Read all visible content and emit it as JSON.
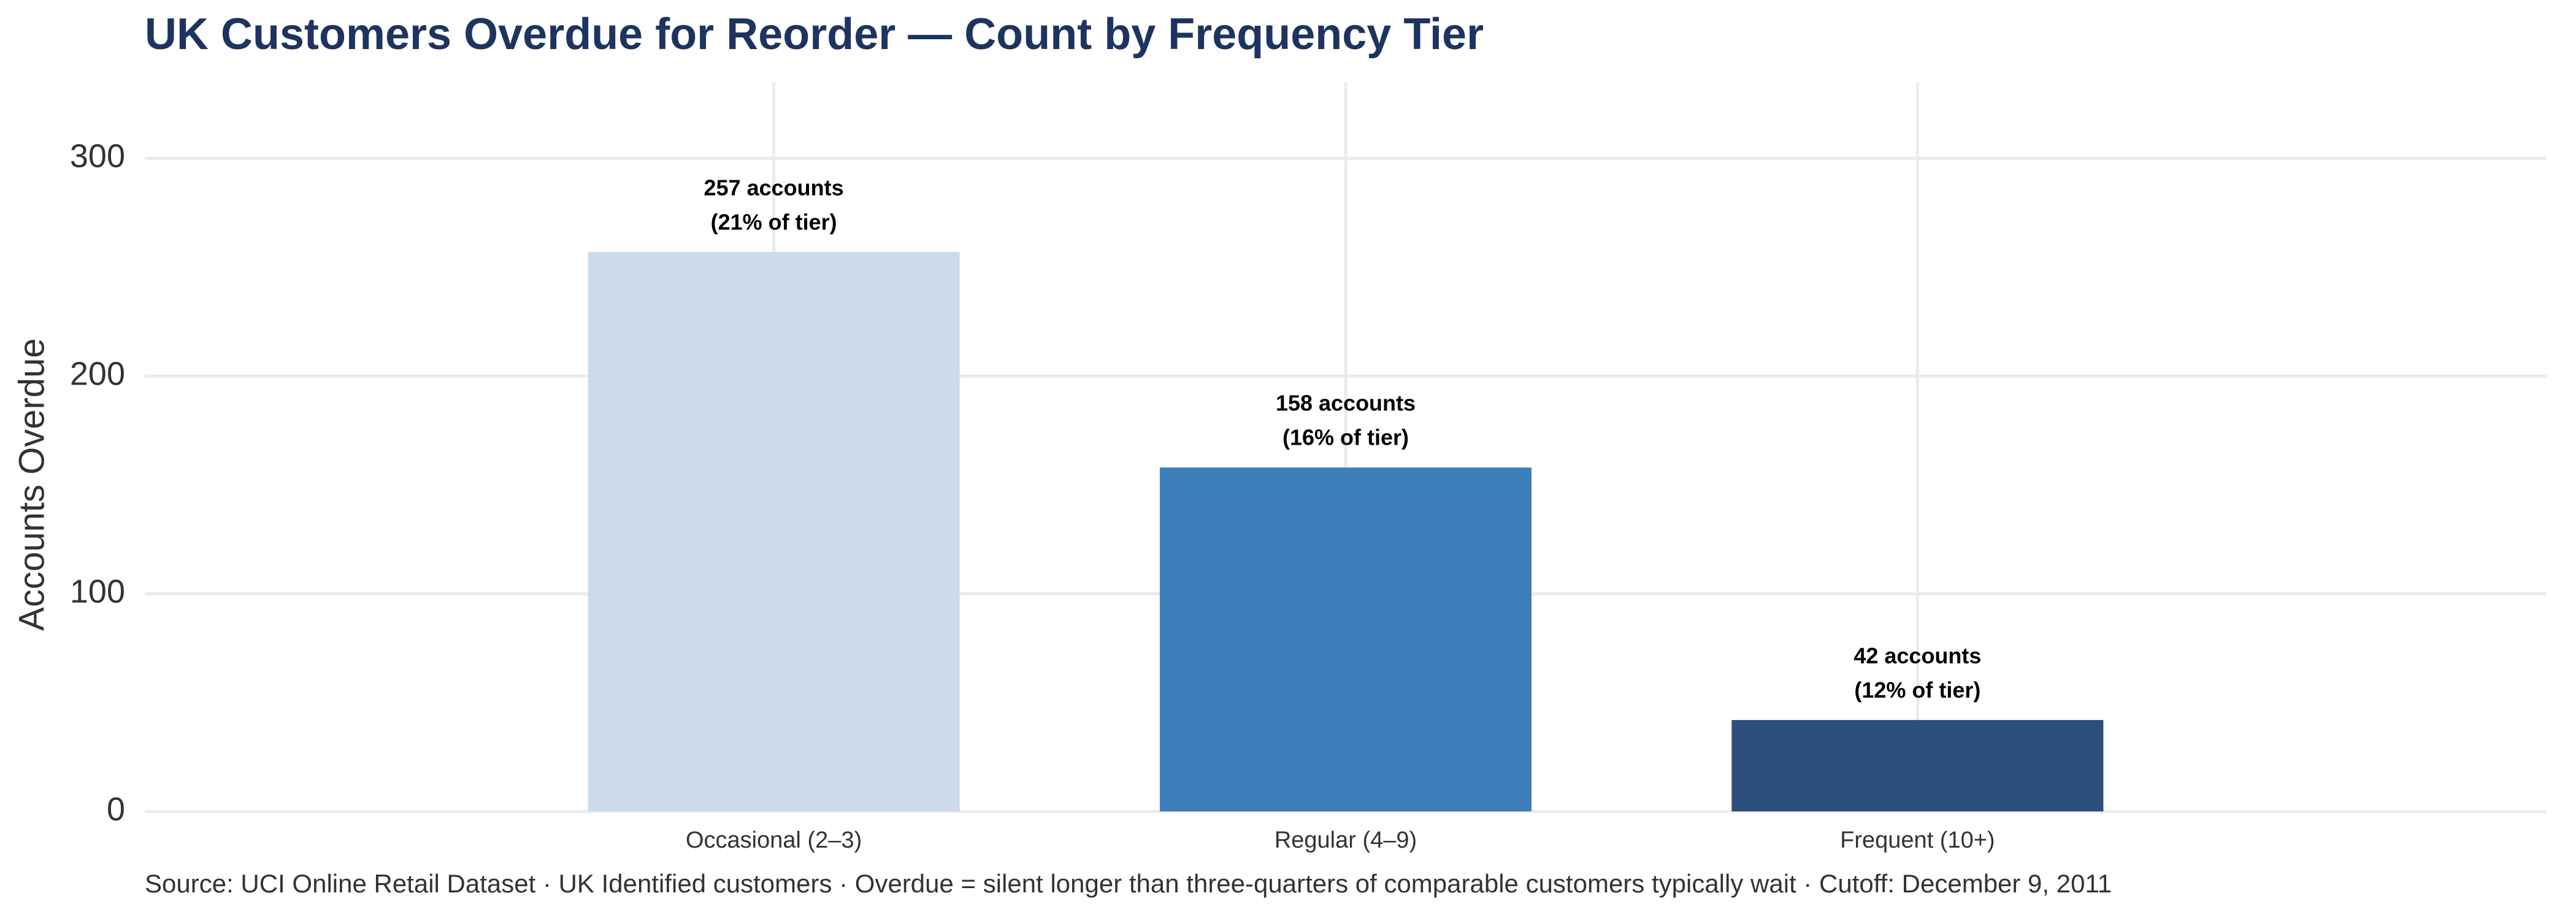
{
  "chart_data": {
    "type": "bar",
    "title": "UK Customers Overdue for Reorder — Count by Frequency Tier",
    "y_axis_label": "Accounts Overdue",
    "categories": [
      "Occasional (2–3)",
      "Regular (4–9)",
      "Frequent (10+)"
    ],
    "values": [
      257,
      158,
      42
    ],
    "value_labels": [
      "257 accounts",
      "158 accounts",
      "42 accounts"
    ],
    "tier_share_labels": [
      "(21% of tier)",
      "(16% of tier)",
      "(12% of tier)"
    ],
    "colors": [
      "#ccdbea",
      "#3d7fba",
      "#2c4f7c"
    ],
    "ylim": [
      0,
      335
    ],
    "yticks": [
      0,
      100,
      200,
      300
    ],
    "grid": true,
    "caption": "Source: UCI Online Retail Dataset · UK Identified customers · Overdue = silent longer than three-quarters of comparable customers typically wait · Cutoff: December 9, 2011"
  }
}
